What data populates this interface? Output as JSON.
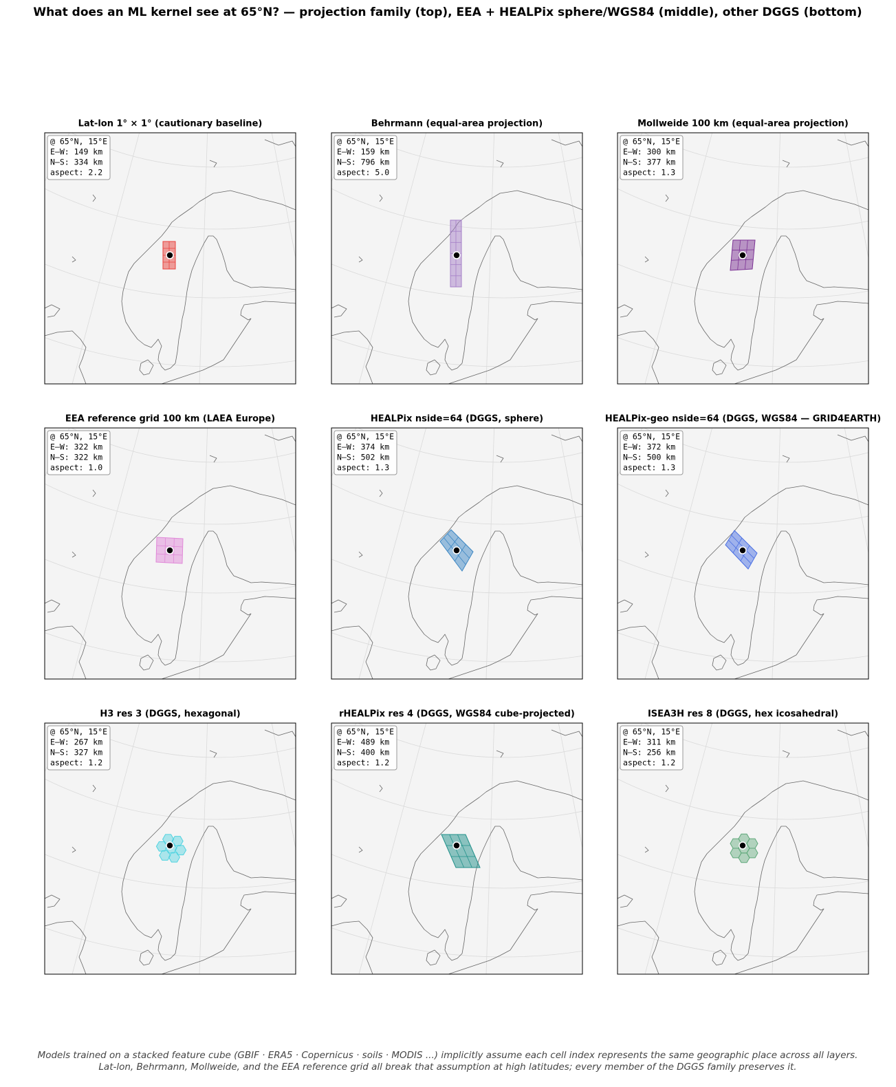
{
  "title": "What does an ML kernel see at 65°N? — projection family (top), EEA + HEALPix sphere/WGS84 (middle), other DGGS (bottom)",
  "panels": [
    {
      "title": "Lat-lon 1° × 1° (cautionary baseline)",
      "color": "#e8413c",
      "info": [
        "@ 65°N, 15°E",
        "E–W: 149 km",
        "N–S: 334 km",
        "aspect: 2.2"
      ]
    },
    {
      "title": "Behrmann (equal-area projection)",
      "color": "#a57fc7",
      "info": [
        "@ 65°N, 15°E",
        "E–W: 159 km",
        "N–S: 796 km",
        "aspect: 5.0"
      ]
    },
    {
      "title": "Mollweide 100 km (equal-area projection)",
      "color": "#7b3294",
      "info": [
        "@ 65°N, 15°E",
        "E–W: 300 km",
        "N–S: 377 km",
        "aspect: 1.3"
      ]
    },
    {
      "title": "EEA reference grid 100 km (LAEA Europe)",
      "color": "#e088d8",
      "info": [
        "@ 65°N, 15°E",
        "E–W: 322 km",
        "N–S: 322 km",
        "aspect: 1.0"
      ]
    },
    {
      "title": "HEALPix nside=64 (DGGS, sphere)",
      "color": "#3b86c3",
      "info": [
        "@ 65°N, 15°E",
        "E–W: 374 km",
        "N–S: 502 km",
        "aspect: 1.3"
      ]
    },
    {
      "title": "HEALPix-geo nside=64 (DGGS, WGS84 — GRID4EARTH)",
      "color": "#4a6fe3",
      "info": [
        "@ 65°N, 15°E",
        "E–W: 372 km",
        "N–S: 500 km",
        "aspect: 1.3"
      ]
    },
    {
      "title": "H3 res 3 (DGGS, hexagonal)",
      "color": "#4fd3e0",
      "info": [
        "@ 65°N, 15°E",
        "E–W: 267 km",
        "N–S: 327 km",
        "aspect: 1.2"
      ]
    },
    {
      "title": "rHEALPix res 4 (DGGS, WGS84 cube-projected)",
      "color": "#20908a",
      "info": [
        "@ 65°N, 15°E",
        "E–W: 489 km",
        "N–S: 400 km",
        "aspect: 1.2"
      ]
    },
    {
      "title": "ISEA3H res 8 (DGGS, hex icosahedral)",
      "color": "#5fa87a",
      "info": [
        "@ 65°N, 15°E",
        "E–W: 311 km",
        "N–S: 256 km",
        "aspect: 1.2"
      ]
    }
  ],
  "footer": [
    "Models trained on a stacked feature cube (GBIF · ERA5 · Copernicus · soils · MODIS ...) implicitly assume each cell index represents the same geographic place across all layers.",
    "Lat-lon, Behrmann, Mollweide, and the EEA reference grid all break that assumption at high latitudes; every member of the DGGS family preserves it."
  ]
}
